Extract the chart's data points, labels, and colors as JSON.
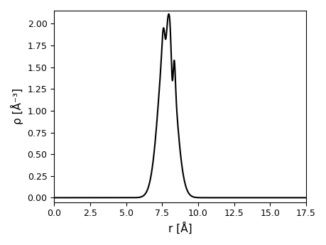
{
  "xlabel": "r [Å]",
  "ylabel": "ρ [Å⁻³]",
  "xlim": [
    0.0,
    17.5
  ],
  "ylim": [
    -0.05,
    2.15
  ],
  "xticks": [
    0.0,
    2.5,
    5.0,
    7.5,
    10.0,
    12.5,
    15.0,
    17.5
  ],
  "yticks": [
    0.0,
    0.25,
    0.5,
    0.75,
    1.0,
    1.25,
    1.5,
    1.75,
    2.0
  ],
  "line_color": "#000000",
  "line_width": 1.5,
  "figsize": [
    4.6,
    3.45
  ],
  "dpi": 100
}
